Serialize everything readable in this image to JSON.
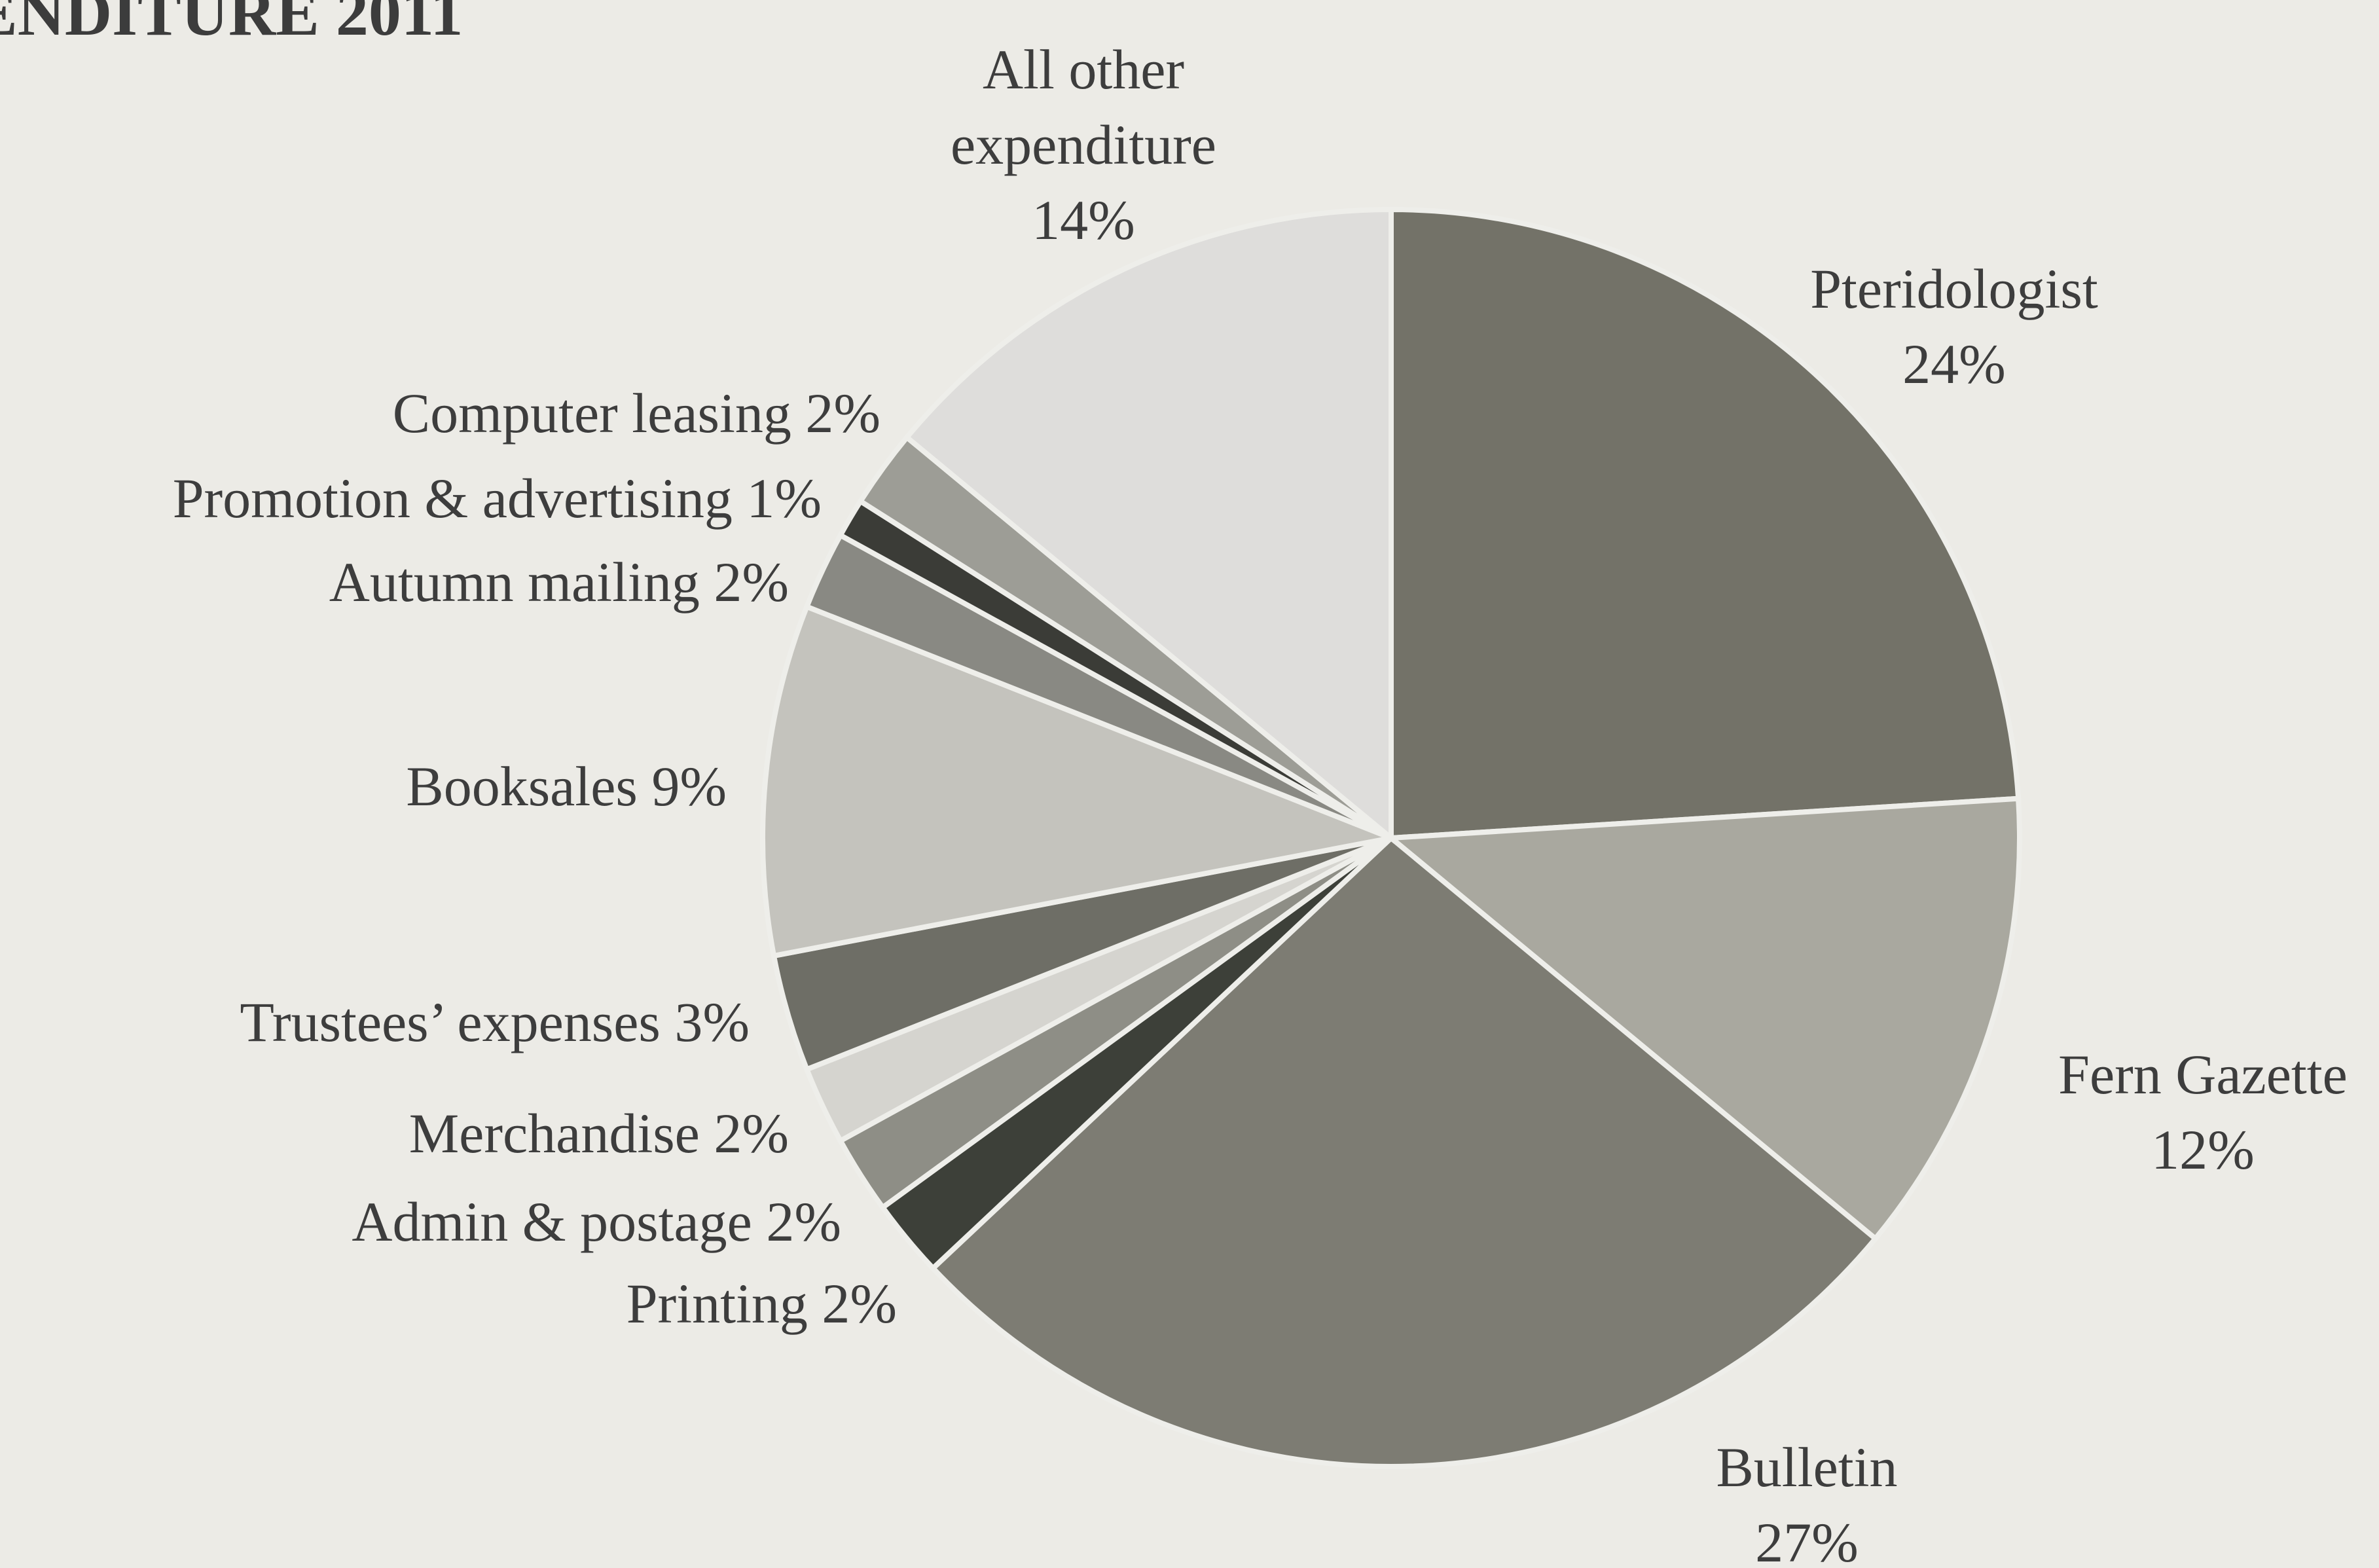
{
  "chart_data": {
    "type": "pie",
    "title": "ENDITURE 2011",
    "start_angle_deg": 0,
    "direction": "clockwise",
    "slices": [
      {
        "label": "Pteridologist",
        "percent_label": "24%",
        "value": 24,
        "color": "#737268"
      },
      {
        "label": "Fern Gazette",
        "percent_label": "12%",
        "value": 12,
        "color": "#a9a89f"
      },
      {
        "label": "Bulletin",
        "percent_label": "27%",
        "value": 27,
        "color": "#7d7c73"
      },
      {
        "label": "Printing",
        "percent_label": "2%",
        "value": 2,
        "color": "#3d4039"
      },
      {
        "label": "Admin & postage",
        "percent_label": "2%",
        "value": 2,
        "color": "#8e8e86"
      },
      {
        "label": "Merchandise",
        "percent_label": "2%",
        "value": 2,
        "color": "#d5d4cf"
      },
      {
        "label": "Trustees’ expenses",
        "percent_label": "3%",
        "value": 3,
        "color": "#6e6e66"
      },
      {
        "label": "Booksales",
        "percent_label": "9%",
        "value": 9,
        "color": "#c4c3bd"
      },
      {
        "label": "Autumn mailing",
        "percent_label": "2%",
        "value": 2,
        "color": "#898983"
      },
      {
        "label": "Promotion & advertising",
        "percent_label": "1%",
        "value": 1,
        "color": "#3b3c37"
      },
      {
        "label": "Computer leasing",
        "percent_label": "2%",
        "value": 2,
        "color": "#9d9d96"
      },
      {
        "label": "All other expenditure",
        "percent_label": "14%",
        "value": 14,
        "color": "#dedddb"
      }
    ]
  },
  "labels": [
    {
      "slice": 0,
      "lines": [
        "Pteridologist",
        "24%"
      ]
    },
    {
      "slice": 1,
      "lines": [
        "Fern Gazette",
        "12%"
      ]
    },
    {
      "slice": 2,
      "lines": [
        "Bulletin",
        "27%"
      ]
    },
    {
      "slice": 3,
      "lines": [
        "Printing 2%"
      ]
    },
    {
      "slice": 4,
      "lines": [
        "Admin & postage 2%"
      ]
    },
    {
      "slice": 5,
      "lines": [
        "Merchandise 2%"
      ]
    },
    {
      "slice": 6,
      "lines": [
        "Trustees’ expenses 3%"
      ]
    },
    {
      "slice": 7,
      "lines": [
        "Booksales 9%"
      ]
    },
    {
      "slice": 8,
      "lines": [
        "Autumn mailing 2%"
      ]
    },
    {
      "slice": 9,
      "lines": [
        "Promotion & advertising 1%"
      ]
    },
    {
      "slice": 10,
      "lines": [
        "Computer leasing 2%"
      ]
    },
    {
      "slice": 11,
      "lines": [
        "All other",
        "expenditure",
        "14%"
      ]
    }
  ]
}
